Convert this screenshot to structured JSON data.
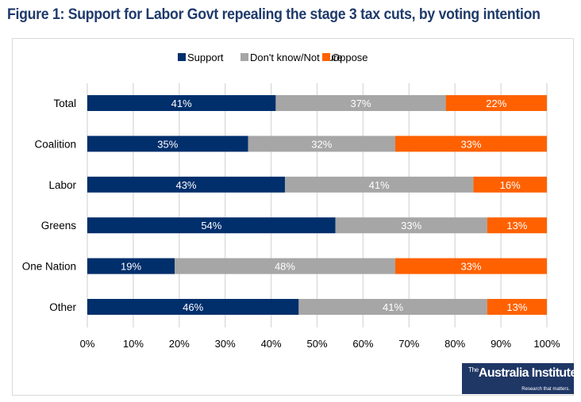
{
  "header": {
    "title": "Figure 1: Support for Labor Govt repealing the stage 3 tax cuts, by voting intention"
  },
  "logo": {
    "the": "The",
    "name": "Australia Institute",
    "tagline": "Research that matters."
  },
  "chart_data": {
    "type": "bar",
    "orientation": "horizontal",
    "stacked": true,
    "title": "Figure 1: Support for Labor Govt repealing the stage 3 tax cuts, by voting intention",
    "categories": [
      "Total",
      "Coalition",
      "Labor",
      "Greens",
      "One Nation",
      "Other"
    ],
    "series": [
      {
        "name": "Support",
        "color": "#002f6c",
        "values": [
          41,
          35,
          43,
          54,
          19,
          46
        ]
      },
      {
        "name": "Don't know/Not sure",
        "color": "#a6a6a6",
        "values": [
          37,
          32,
          41,
          33,
          48,
          41
        ]
      },
      {
        "name": "Oppose",
        "color": "#ff6100",
        "values": [
          22,
          33,
          16,
          13,
          33,
          13
        ]
      }
    ],
    "data_label_format": "{v}%",
    "xlabel": "",
    "ylabel": "",
    "xlim": [
      0,
      100
    ],
    "xticks": [
      "0%",
      "10%",
      "20%",
      "30%",
      "40%",
      "50%",
      "60%",
      "70%",
      "80%",
      "90%",
      "100%"
    ],
    "grid": true,
    "legend": "top-center"
  }
}
